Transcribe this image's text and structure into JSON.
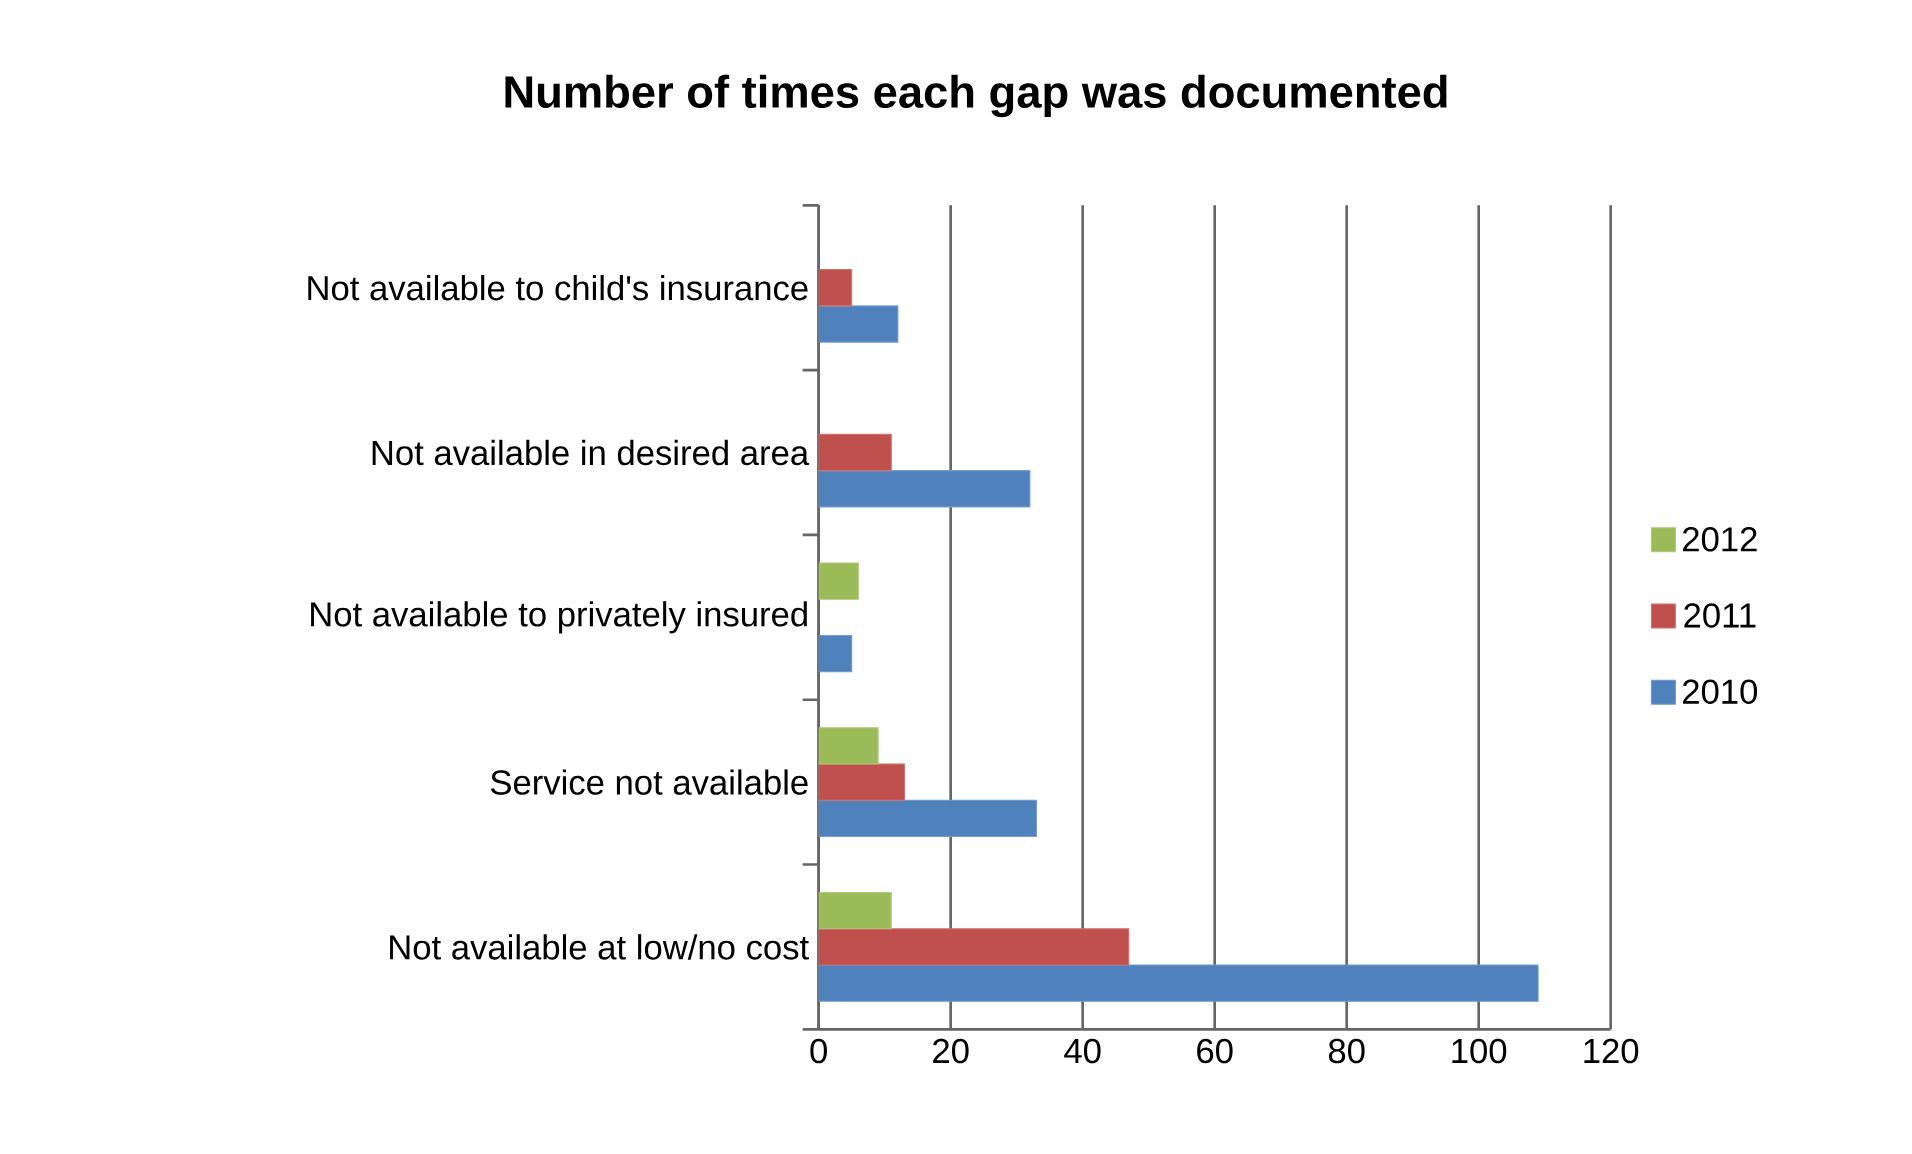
{
  "chart_data": {
    "type": "bar",
    "orientation": "horizontal",
    "title": "Number of times each gap was documented",
    "categories": [
      "Not available to child's insurance",
      "Not available in desired area",
      "Not available to privately insured",
      "Service not available",
      "Not available at low/no cost"
    ],
    "series": [
      {
        "name": "2010",
        "color": "#4f81bd",
        "values": [
          12,
          32,
          5,
          33,
          109
        ]
      },
      {
        "name": "2011",
        "color": "#c0504d",
        "values": [
          5,
          11,
          null,
          13,
          47
        ]
      },
      {
        "name": "2012",
        "color": "#9bbb59",
        "values": [
          null,
          null,
          6,
          9,
          11
        ]
      }
    ],
    "xlim": [
      0,
      120
    ],
    "xticks": [
      0,
      20,
      40,
      60,
      80,
      100,
      120
    ],
    "grid": "x",
    "legend": "right"
  }
}
